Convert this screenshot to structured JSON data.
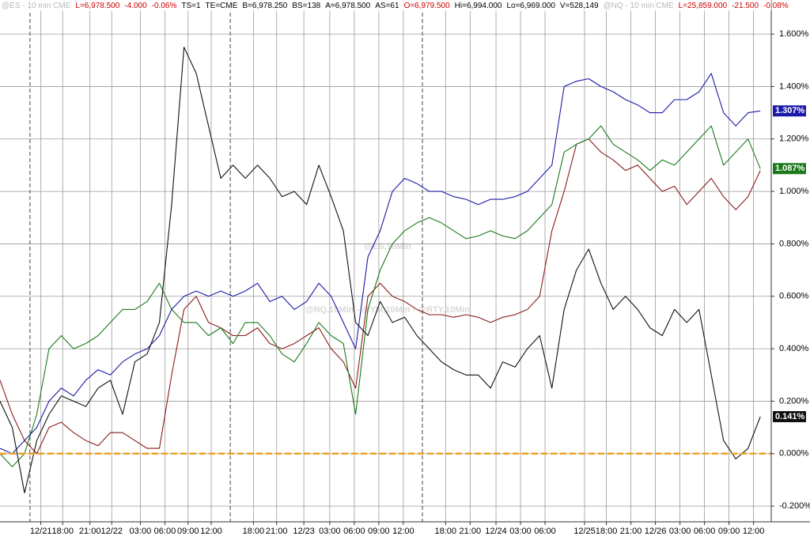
{
  "header": [
    {
      "text": "@ES - 10 min  CME",
      "color": "#b8b8b8"
    },
    {
      "text": "L=6,978.500",
      "color": "#cc0000"
    },
    {
      "text": "-4.000",
      "color": "#cc0000"
    },
    {
      "text": "-0.06%",
      "color": "#cc0000"
    },
    {
      "text": "TS=1",
      "color": "#000000"
    },
    {
      "text": "TE=CME",
      "color": "#000000"
    },
    {
      "text": "B=6,978.250",
      "color": "#000000"
    },
    {
      "text": "BS=138",
      "color": "#000000"
    },
    {
      "text": "A=6,978.500",
      "color": "#000000"
    },
    {
      "text": "AS=61",
      "color": "#000000"
    },
    {
      "text": "O=6,979.500",
      "color": "#cc0000"
    },
    {
      "text": "Hi=6,994.000",
      "color": "#000000"
    },
    {
      "text": "Lo=6,969.000",
      "color": "#000000"
    },
    {
      "text": "V=528,149",
      "color": "#000000"
    },
    {
      "text": "@NQ - 10 min  CME",
      "color": "#b8b8b8"
    },
    {
      "text": "L=25,859.000",
      "color": "#cc0000"
    },
    {
      "text": "-21.500",
      "color": "#cc0000"
    },
    {
      "text": "-0.08%",
      "color": "#cc0000"
    }
  ],
  "watermarks": [
    "@ES,10Min",
    "@NQ,10Min - @YM,10Min - @RTY,10Min"
  ],
  "chart_data": {
    "type": "line",
    "grid": true,
    "x": [
      0,
      9,
      18,
      27,
      36,
      45,
      54,
      63,
      72,
      81,
      90,
      99,
      108,
      117,
      126,
      135,
      144,
      153,
      162,
      171,
      180,
      189,
      198,
      207,
      216,
      225,
      234,
      243,
      252,
      261,
      270,
      279,
      288,
      297,
      306,
      315,
      324,
      333,
      342,
      351,
      360,
      369,
      378,
      387,
      396,
      405,
      414,
      423,
      432,
      441,
      450,
      459,
      468,
      477,
      486,
      495,
      504,
      513,
      522,
      531,
      540,
      549,
      558
    ],
    "xlim": [
      0,
      566
    ],
    "xticks": [
      {
        "value": 30,
        "label": "12/21"
      },
      {
        "value": 46,
        "label": "18:00"
      },
      {
        "value": 66,
        "label": "21:00"
      },
      {
        "value": 82,
        "label": "12/22"
      },
      {
        "value": 103,
        "label": "03:00"
      },
      {
        "value": 121,
        "label": "06:00"
      },
      {
        "value": 138,
        "label": "09:00"
      },
      {
        "value": 155,
        "label": "12:00"
      },
      {
        "value": 186,
        "label": "18:00"
      },
      {
        "value": 203,
        "label": "21:00"
      },
      {
        "value": 223,
        "label": "12/23"
      },
      {
        "value": 242,
        "label": "03:00"
      },
      {
        "value": 260,
        "label": "06:00"
      },
      {
        "value": 278,
        "label": "09:00"
      },
      {
        "value": 296,
        "label": "12:00"
      },
      {
        "value": 327,
        "label": "18:00"
      },
      {
        "value": 345,
        "label": "21:00"
      },
      {
        "value": 364,
        "label": "12/24"
      },
      {
        "value": 382,
        "label": "03:00"
      },
      {
        "value": 400,
        "label": "06:00"
      },
      {
        "value": 429,
        "label": "12/25"
      },
      {
        "value": 445,
        "label": "18:00"
      },
      {
        "value": 463,
        "label": "21:00"
      },
      {
        "value": 481,
        "label": "12/26"
      },
      {
        "value": 499,
        "label": "03:00"
      },
      {
        "value": 517,
        "label": "06:00"
      },
      {
        "value": 535,
        "label": "09:00"
      },
      {
        "value": 553,
        "label": "12:00"
      }
    ],
    "session_breaks": [
      22,
      169,
      310
    ],
    "ylim": [
      -0.26,
      1.73
    ],
    "yticks": [
      {
        "value": -0.2,
        "label": "-0.200%"
      },
      {
        "value": 0,
        "label": "0.000%"
      },
      {
        "value": 0.2,
        "label": "0.200%"
      },
      {
        "value": 0.4,
        "label": "0.400%"
      },
      {
        "value": 0.6,
        "label": "0.600%"
      },
      {
        "value": 0.8,
        "label": "0.800%"
      },
      {
        "value": 1.0,
        "label": "1.000%"
      },
      {
        "value": 1.2,
        "label": "1.200%"
      },
      {
        "value": 1.4,
        "label": "1.400%"
      },
      {
        "value": 1.6,
        "label": "1.600%"
      }
    ],
    "reference_line": {
      "value": 0,
      "color": "#f0a020"
    },
    "series": [
      {
        "color": "#cc3333",
        "stroke": "#8b1a1a",
        "values": [
          0.28,
          0.15,
          0.05,
          0.0,
          0.1,
          0.12,
          0.08,
          0.05,
          0.03,
          0.08,
          0.08,
          0.05,
          0.02,
          0.02,
          0.3,
          0.55,
          0.6,
          0.5,
          0.48,
          0.45,
          0.45,
          0.48,
          0.42,
          0.4,
          0.42,
          0.45,
          0.48,
          0.4,
          0.35,
          0.25,
          0.6,
          0.65,
          0.6,
          0.58,
          0.55,
          0.53,
          0.53,
          0.52,
          0.53,
          0.52,
          0.5,
          0.52,
          0.53,
          0.55,
          0.6,
          0.85,
          1.0,
          1.18,
          1.2,
          1.15,
          1.12,
          1.08,
          1.1,
          1.05,
          1.0,
          1.02,
          0.95,
          1.0,
          1.05,
          0.98,
          0.93,
          0.98,
          1.08
        ]
      },
      {
        "color": "#1a7a1a",
        "stroke": "#1a7a1a",
        "last_label": "1.087%",
        "values": [
          0.0,
          -0.05,
          0.0,
          0.15,
          0.4,
          0.45,
          0.4,
          0.42,
          0.45,
          0.5,
          0.55,
          0.55,
          0.58,
          0.65,
          0.55,
          0.5,
          0.5,
          0.45,
          0.48,
          0.42,
          0.5,
          0.5,
          0.45,
          0.38,
          0.35,
          0.42,
          0.5,
          0.45,
          0.42,
          0.15,
          0.55,
          0.7,
          0.8,
          0.85,
          0.88,
          0.9,
          0.88,
          0.85,
          0.82,
          0.83,
          0.85,
          0.83,
          0.82,
          0.85,
          0.9,
          0.95,
          1.15,
          1.18,
          1.2,
          1.25,
          1.18,
          1.15,
          1.12,
          1.08,
          1.12,
          1.1,
          1.15,
          1.2,
          1.25,
          1.1,
          1.15,
          1.2,
          1.087
        ]
      },
      {
        "color": "#1a1aa8",
        "stroke": "#1a1aa8",
        "last_label": "1.307%",
        "values": [
          0.02,
          0.0,
          0.05,
          0.1,
          0.2,
          0.25,
          0.22,
          0.28,
          0.32,
          0.3,
          0.35,
          0.38,
          0.4,
          0.45,
          0.55,
          0.6,
          0.62,
          0.6,
          0.62,
          0.6,
          0.62,
          0.65,
          0.58,
          0.6,
          0.55,
          0.58,
          0.65,
          0.6,
          0.5,
          0.4,
          0.75,
          0.85,
          1.0,
          1.05,
          1.03,
          1.0,
          1.0,
          0.98,
          0.97,
          0.95,
          0.97,
          0.97,
          0.98,
          1.0,
          1.05,
          1.1,
          1.4,
          1.42,
          1.43,
          1.4,
          1.38,
          1.35,
          1.33,
          1.3,
          1.3,
          1.35,
          1.35,
          1.38,
          1.45,
          1.3,
          1.25,
          1.3,
          1.307
        ]
      },
      {
        "color": "#111111",
        "stroke": "#111111",
        "last_label": "0.141%",
        "values": [
          0.2,
          0.1,
          -0.15,
          0.05,
          0.15,
          0.22,
          0.2,
          0.18,
          0.25,
          0.28,
          0.15,
          0.35,
          0.38,
          0.5,
          0.95,
          1.55,
          1.45,
          1.25,
          1.05,
          1.1,
          1.05,
          1.1,
          1.05,
          0.98,
          1.0,
          0.95,
          1.1,
          0.98,
          0.85,
          0.5,
          0.45,
          0.58,
          0.5,
          0.52,
          0.45,
          0.4,
          0.35,
          0.32,
          0.3,
          0.3,
          0.25,
          0.35,
          0.33,
          0.4,
          0.45,
          0.25,
          0.55,
          0.7,
          0.78,
          0.65,
          0.55,
          0.6,
          0.55,
          0.48,
          0.45,
          0.55,
          0.5,
          0.55,
          0.3,
          0.05,
          -0.02,
          0.02,
          0.141
        ]
      }
    ]
  }
}
